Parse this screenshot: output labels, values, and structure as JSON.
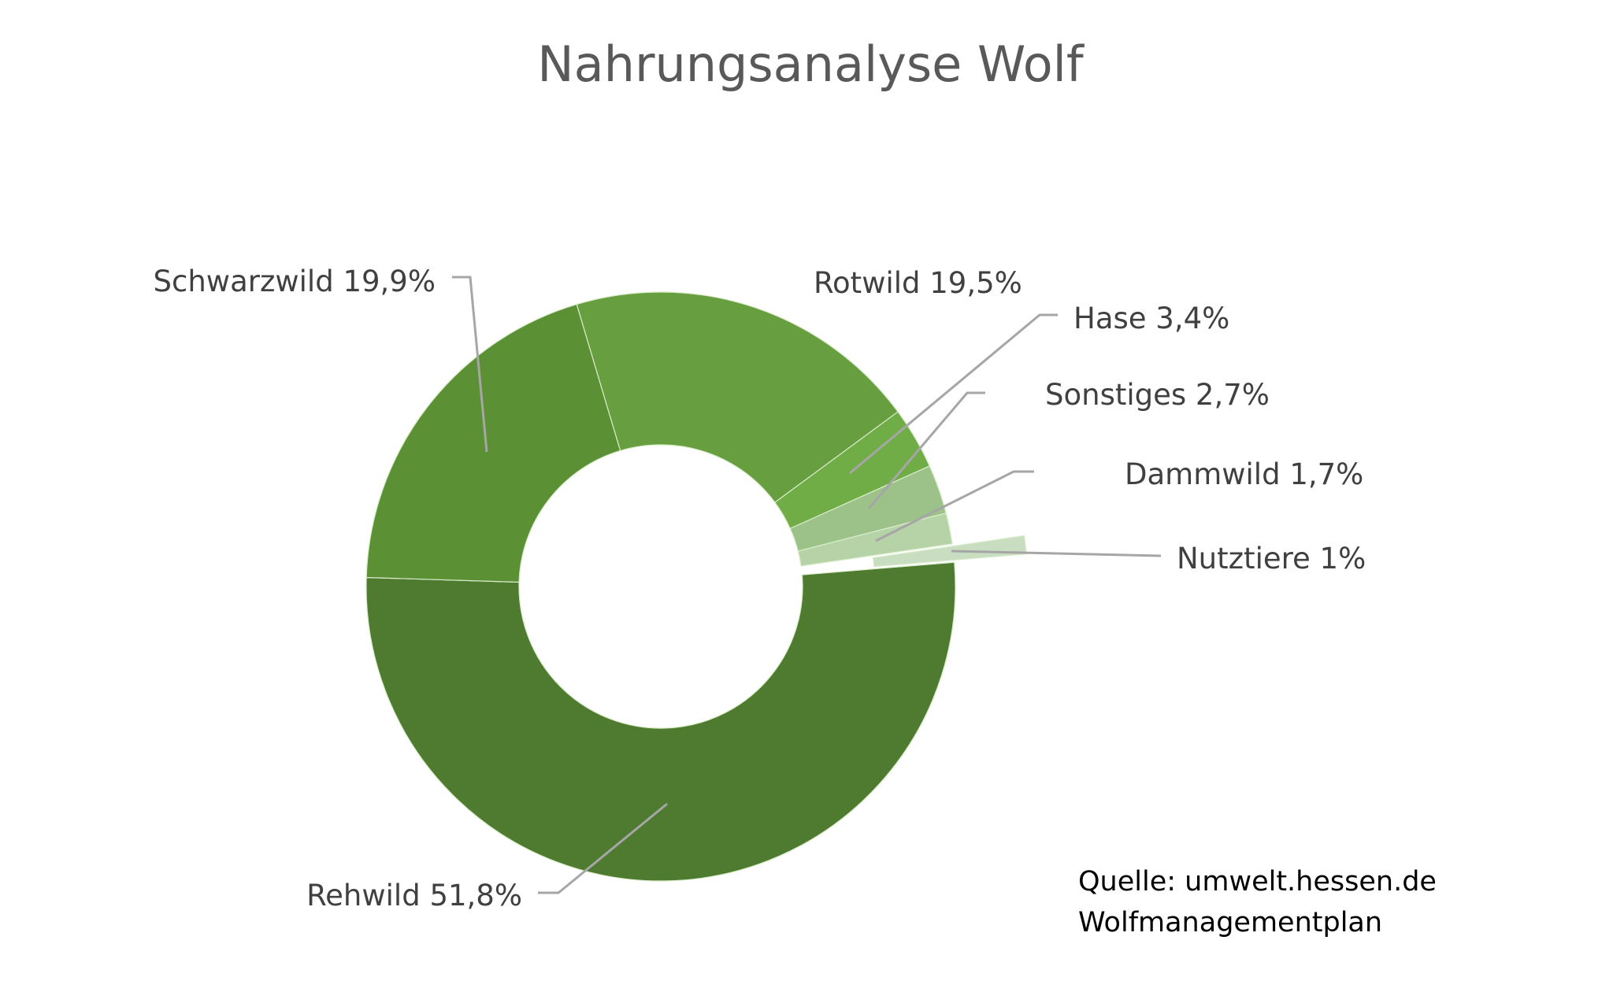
{
  "chart_data": {
    "type": "pie",
    "variant": "doughnut",
    "title": "Nahrungsanalyse Wolf",
    "categories": [
      "Rotwild",
      "Hase",
      "Sonstiges",
      "Dammwild",
      "Nutztiere",
      "Rehwild",
      "Schwarzwild"
    ],
    "values": [
      19.5,
      3.4,
      2.7,
      1.7,
      1,
      51.8,
      19.9
    ],
    "unit": "%",
    "data_labels": [
      "Rotwild 19,5%",
      "Hase 3,4%",
      "Sonstiges 2,7%",
      "Dammwild 1,7%",
      "Nutztiere 1%",
      "Rehwild 51,8%",
      "Schwarzwild 19,9%"
    ],
    "colors": [
      "#679e40",
      "#70ad47",
      "#9cc28a",
      "#b6d3a8",
      "#c9ddc0",
      "#4e7b2f",
      "#5b9035"
    ],
    "exploded": [
      "Nutztiere"
    ],
    "legend": "none"
  },
  "source": {
    "line1": "Quelle: umwelt.hessen.de",
    "line2": "Wolfmanagementplan"
  }
}
